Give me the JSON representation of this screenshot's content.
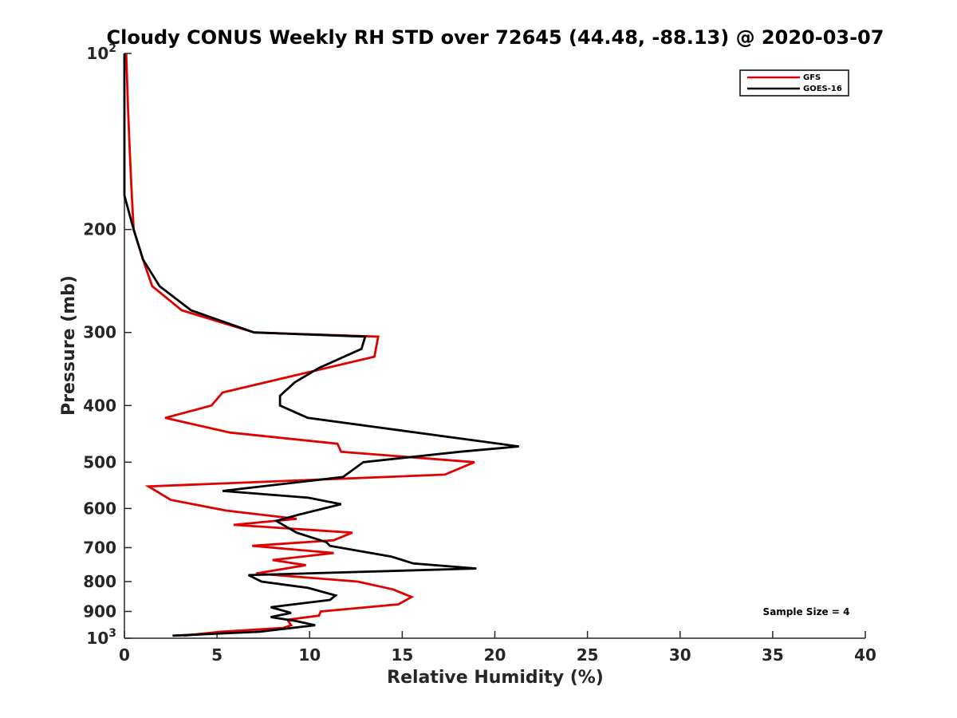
{
  "chart_data": {
    "type": "line",
    "title": "Cloudy CONUS Weekly RH STD over 72645 (44.48, -88.13) @ 2020-03-07",
    "xlabel": "Relative Humidity (%)",
    "ylabel": "Pressure (mb)",
    "xlim": [
      0,
      40
    ],
    "ylim": [
      100,
      1000
    ],
    "y_scale": "log",
    "y_reversed": true,
    "grid": false,
    "legend_position": "top-right",
    "x_ticks": [
      "0",
      "5",
      "10",
      "15",
      "20",
      "25",
      "30",
      "35",
      "40"
    ],
    "y_ticks": [
      {
        "value": 100,
        "base": "10",
        "exp": "2"
      },
      {
        "value": 200,
        "label": "200"
      },
      {
        "value": 300,
        "label": "300"
      },
      {
        "value": 400,
        "label": "400"
      },
      {
        "value": 500,
        "label": "500"
      },
      {
        "value": 600,
        "label": "600"
      },
      {
        "value": 700,
        "label": "700"
      },
      {
        "value": 800,
        "label": "800"
      },
      {
        "value": 900,
        "label": "900"
      },
      {
        "value": 1000,
        "base": "10",
        "exp": "3"
      }
    ],
    "annotation": "Sample Size = 4",
    "series": [
      {
        "name": "GFS",
        "color": "#e00000",
        "points": [
          [
            0.1,
            100
          ],
          [
            0.2,
            125
          ],
          [
            0.3,
            150
          ],
          [
            0.4,
            175
          ],
          [
            0.5,
            200
          ],
          [
            1.0,
            225
          ],
          [
            1.5,
            250
          ],
          [
            3.1,
            275
          ],
          [
            7.0,
            300
          ],
          [
            13.7,
            305
          ],
          [
            13.5,
            330
          ],
          [
            5.3,
            380
          ],
          [
            4.7,
            400
          ],
          [
            2.2,
            420
          ],
          [
            5.7,
            445
          ],
          [
            11.5,
            465
          ],
          [
            11.7,
            480
          ],
          [
            18.9,
            500
          ],
          [
            17.3,
            525
          ],
          [
            1.3,
            550
          ],
          [
            2.5,
            580
          ],
          [
            5.5,
            605
          ],
          [
            9.3,
            625
          ],
          [
            5.9,
            640
          ],
          [
            12.3,
            660
          ],
          [
            11.3,
            680
          ],
          [
            6.9,
            695
          ],
          [
            11.3,
            715
          ],
          [
            8.0,
            735
          ],
          [
            9.8,
            750
          ],
          [
            7.1,
            775
          ],
          [
            12.6,
            800
          ],
          [
            14.5,
            825
          ],
          [
            15.5,
            850
          ],
          [
            14.8,
            875
          ],
          [
            10.6,
            900
          ],
          [
            10.5,
            915
          ],
          [
            8.8,
            930
          ],
          [
            9.0,
            950
          ],
          [
            8.6,
            960
          ],
          [
            5.2,
            975
          ],
          [
            3.2,
            990
          ]
        ]
      },
      {
        "name": "GOES-16",
        "color": "#000000",
        "points": [
          [
            0.0,
            100
          ],
          [
            0.0,
            125
          ],
          [
            0.0,
            150
          ],
          [
            0.0,
            175
          ],
          [
            0.5,
            200
          ],
          [
            1.0,
            225
          ],
          [
            1.9,
            250
          ],
          [
            3.6,
            275
          ],
          [
            7.0,
            300
          ],
          [
            13.0,
            305
          ],
          [
            12.8,
            320
          ],
          [
            10.5,
            345
          ],
          [
            9.2,
            365
          ],
          [
            8.4,
            385
          ],
          [
            8.4,
            400
          ],
          [
            9.9,
            420
          ],
          [
            21.3,
            470
          ],
          [
            18.1,
            480
          ],
          [
            12.9,
            500
          ],
          [
            11.8,
            530
          ],
          [
            5.3,
            560
          ],
          [
            9.9,
            575
          ],
          [
            11.7,
            590
          ],
          [
            9.4,
            615
          ],
          [
            8.2,
            630
          ],
          [
            9.3,
            660
          ],
          [
            10.9,
            685
          ],
          [
            11.1,
            695
          ],
          [
            14.4,
            725
          ],
          [
            15.6,
            745
          ],
          [
            19.0,
            760
          ],
          [
            6.7,
            780
          ],
          [
            7.4,
            800
          ],
          [
            9.9,
            820
          ],
          [
            11.4,
            845
          ],
          [
            11.1,
            860
          ],
          [
            7.9,
            885
          ],
          [
            9.0,
            905
          ],
          [
            7.9,
            920
          ],
          [
            9.3,
            935
          ],
          [
            10.3,
            950
          ],
          [
            7.3,
            975
          ],
          [
            2.6,
            990
          ]
        ]
      }
    ]
  }
}
